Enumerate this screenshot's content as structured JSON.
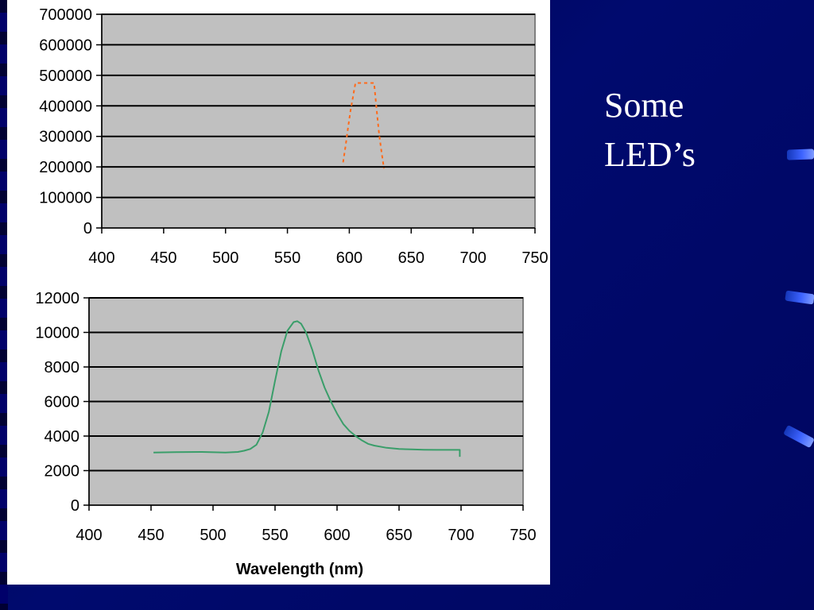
{
  "slide": {
    "title_lines": [
      "Some",
      "LED’s"
    ]
  },
  "colors": {
    "background": "#000066",
    "plot_area": "#c0c0c0",
    "gridline": "#000000",
    "series_top": "#ff6a1a",
    "series_bottom": "#3a9e6a",
    "title_text": "#ffffff"
  },
  "chart_data": [
    {
      "type": "line",
      "title": "",
      "xlabel": "",
      "ylabel": "",
      "xlim": [
        400,
        750
      ],
      "ylim": [
        0,
        700000
      ],
      "xticks": [
        400,
        450,
        500,
        550,
        600,
        650,
        700,
        750
      ],
      "yticks": [
        0,
        100000,
        200000,
        300000,
        400000,
        500000,
        600000,
        700000
      ],
      "grid": true,
      "legend": "none",
      "series": [
        {
          "style": "dashed",
          "color": "#ff6a1a",
          "x": [
            595,
            597,
            599,
            601,
            603,
            604,
            605,
            620,
            622,
            624,
            626,
            628
          ],
          "y": [
            215000,
            270000,
            330000,
            385000,
            430000,
            455000,
            475000,
            475000,
            390000,
            310000,
            250000,
            195000
          ]
        }
      ]
    },
    {
      "type": "line",
      "title": "",
      "xlabel": "Wavelength (nm)",
      "ylabel": "",
      "xlim": [
        400,
        750
      ],
      "ylim": [
        0,
        12000
      ],
      "xticks": [
        400,
        450,
        500,
        550,
        600,
        650,
        700,
        750
      ],
      "yticks": [
        0,
        2000,
        4000,
        6000,
        8000,
        10000,
        12000
      ],
      "grid": true,
      "legend": "none",
      "series": [
        {
          "style": "solid",
          "color": "#3a9e6a",
          "x": [
            452,
            470,
            490,
            510,
            520,
            525,
            530,
            535,
            540,
            545,
            550,
            555,
            560,
            565,
            568,
            571,
            575,
            580,
            585,
            590,
            595,
            600,
            605,
            610,
            615,
            620,
            625,
            630,
            640,
            650,
            660,
            670,
            680,
            690,
            699,
            699
          ],
          "y": [
            3050,
            3070,
            3080,
            3050,
            3080,
            3150,
            3250,
            3500,
            4200,
            5400,
            7200,
            8900,
            10100,
            10600,
            10650,
            10500,
            10000,
            9000,
            7800,
            6800,
            6000,
            5300,
            4700,
            4300,
            4000,
            3750,
            3550,
            3450,
            3320,
            3250,
            3230,
            3210,
            3200,
            3200,
            3200,
            2800
          ]
        }
      ]
    }
  ]
}
